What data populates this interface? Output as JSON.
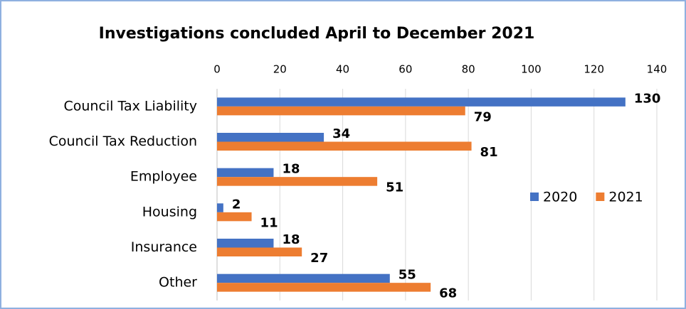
{
  "chart_data": {
    "type": "bar",
    "orientation": "horizontal",
    "title": "Investigations concluded April to December 2021",
    "categories": [
      "Council Tax Liability",
      "Council Tax Reduction",
      "Employee",
      "Housing",
      "Insurance",
      "Other"
    ],
    "series": [
      {
        "name": "2020",
        "color": "#4472c4",
        "values": [
          130,
          34,
          18,
          2,
          18,
          55
        ]
      },
      {
        "name": "2021",
        "color": "#ed7d31",
        "values": [
          79,
          81,
          51,
          11,
          27,
          68
        ]
      }
    ],
    "xlim": [
      0,
      140
    ],
    "xticks": [
      0,
      20,
      40,
      60,
      80,
      100,
      120,
      140
    ],
    "grid": true,
    "legend": "right"
  }
}
